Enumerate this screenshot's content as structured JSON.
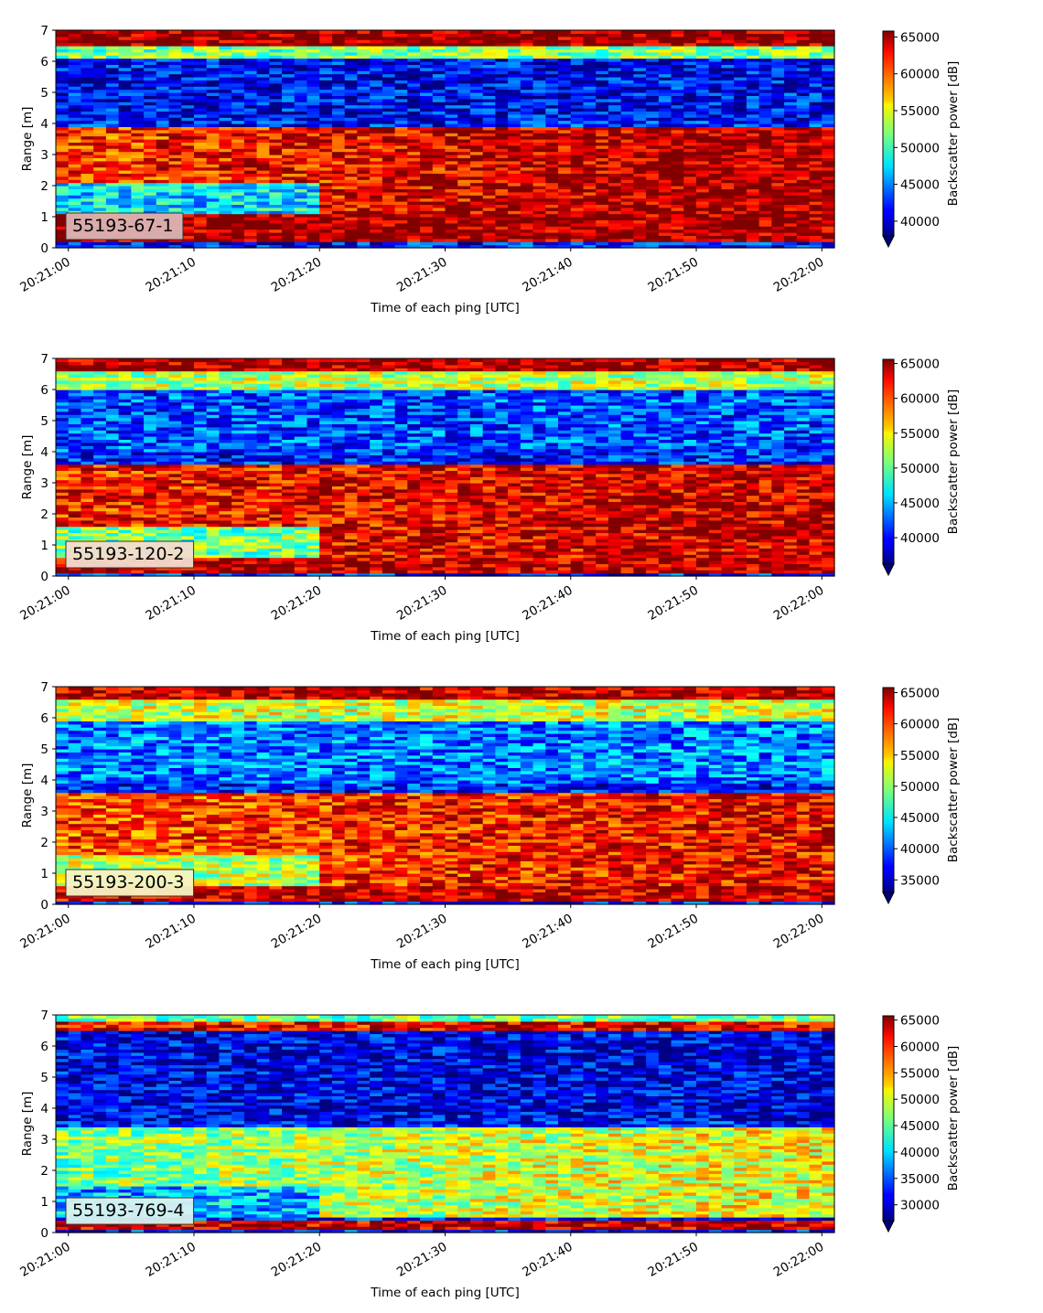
{
  "chart_data": [
    {
      "type": "heatmap",
      "label": "55193-67-1",
      "label_bg": "#dcb4b4",
      "xlabel": "Time of each ping [UTC]",
      "ylabel": "Range [m]",
      "xticks": [
        "20:21:00",
        "20:21:10",
        "20:21:20",
        "20:21:30",
        "20:21:40",
        "20:21:50",
        "20:22:00"
      ],
      "yticks": [
        "0",
        "1",
        "2",
        "3",
        "4",
        "5",
        "6",
        "7"
      ],
      "xlim_seconds": [
        -1,
        61
      ],
      "ylim": [
        0,
        7
      ],
      "colorbar": {
        "label": "Backscatter power [dB]",
        "ticks": [
          "40000",
          "45000",
          "50000",
          "55000",
          "60000",
          "65000"
        ],
        "range": [
          38000,
          65800
        ],
        "extend": "min"
      },
      "layers": [
        {
          "name": "surface",
          "from": 6.5,
          "to": 7.0,
          "t0": [
            0.98,
            0.98
          ],
          "t1": [
            0.98,
            0.98
          ]
        },
        {
          "name": "upper transition",
          "from": 6.15,
          "to": 6.5,
          "t0": [
            0.5,
            0.5
          ],
          "t1": [
            0.5,
            0.5
          ]
        },
        {
          "name": "water column",
          "from": 4.1,
          "to": 6.15,
          "t0": [
            0.12,
            0.12
          ],
          "t1": [
            0.12,
            0.12
          ]
        },
        {
          "name": "scattering layer",
          "from": 1.1,
          "to": 3.9,
          "t0": [
            0.82,
            0.35
          ],
          "t1": [
            0.97,
            0.97
          ]
        },
        {
          "name": "seabed",
          "from": 0.2,
          "to": 1.1,
          "t0": [
            0.97,
            0.97
          ],
          "t1": [
            0.97,
            0.97
          ]
        }
      ]
    },
    {
      "type": "heatmap",
      "label": "55193-120-2",
      "label_bg": "#f2dccf",
      "xlabel": "Time of each ping [UTC]",
      "ylabel": "Range [m]",
      "xticks": [
        "20:21:00",
        "20:21:10",
        "20:21:20",
        "20:21:30",
        "20:21:40",
        "20:21:50",
        "20:22:00"
      ],
      "yticks": [
        "0",
        "1",
        "2",
        "3",
        "4",
        "5",
        "6",
        "7"
      ],
      "xlim_seconds": [
        -1,
        61
      ],
      "ylim": [
        0,
        7
      ],
      "colorbar": {
        "label": "Backscatter power [dB]",
        "ticks": [
          "40000",
          "45000",
          "50000",
          "55000",
          "60000",
          "65000"
        ],
        "range": [
          36200,
          65600
        ],
        "extend": "min"
      },
      "layers": [
        {
          "name": "surface",
          "from": 6.6,
          "to": 7.0,
          "t0": [
            0.96,
            0.96
          ],
          "t1": [
            0.96,
            0.96
          ]
        },
        {
          "name": "upper transition",
          "from": 6.0,
          "to": 6.6,
          "t0": [
            0.55,
            0.55
          ],
          "t1": [
            0.55,
            0.55
          ]
        },
        {
          "name": "water column",
          "from": 4.0,
          "to": 6.0,
          "t0": [
            0.2,
            0.2
          ],
          "t1": [
            0.2,
            0.2
          ]
        },
        {
          "name": "scattering layer",
          "from": 0.6,
          "to": 3.6,
          "t0": [
            0.85,
            0.5
          ],
          "t1": [
            0.93,
            0.93
          ]
        },
        {
          "name": "seabed",
          "from": 0.1,
          "to": 0.6,
          "t0": [
            0.95,
            0.95
          ],
          "t1": [
            0.95,
            0.95
          ]
        }
      ]
    },
    {
      "type": "heatmap",
      "label": "55193-200-3",
      "label_bg": "#f6f3c4",
      "xlabel": "Time of each ping [UTC]",
      "ylabel": "Range [m]",
      "xticks": [
        "20:21:00",
        "20:21:10",
        "20:21:20",
        "20:21:30",
        "20:21:40",
        "20:21:50",
        "20:22:00"
      ],
      "yticks": [
        "0",
        "1",
        "2",
        "3",
        "4",
        "5",
        "6",
        "7"
      ],
      "xlim_seconds": [
        -1,
        61
      ],
      "ylim": [
        0,
        7
      ],
      "colorbar": {
        "label": "Backscatter power [dB]",
        "ticks": [
          "35000",
          "40000",
          "45000",
          "50000",
          "55000",
          "60000",
          "65000"
        ],
        "range": [
          33000,
          65800
        ],
        "extend": "min"
      },
      "layers": [
        {
          "name": "surface",
          "from": 6.6,
          "to": 7.0,
          "t0": [
            0.94,
            0.94
          ],
          "t1": [
            0.94,
            0.94
          ]
        },
        {
          "name": "upper transition",
          "from": 5.9,
          "to": 6.6,
          "t0": [
            0.58,
            0.58
          ],
          "t1": [
            0.58,
            0.58
          ]
        },
        {
          "name": "water column",
          "from": 3.9,
          "to": 5.9,
          "t0": [
            0.25,
            0.25
          ],
          "t1": [
            0.25,
            0.25
          ]
        },
        {
          "name": "scattering layer",
          "from": 0.6,
          "to": 3.6,
          "t0": [
            0.8,
            0.55
          ],
          "t1": [
            0.88,
            0.88
          ]
        },
        {
          "name": "seabed",
          "from": 0.1,
          "to": 0.6,
          "t0": [
            0.93,
            0.93
          ],
          "t1": [
            0.93,
            0.93
          ]
        }
      ]
    },
    {
      "type": "heatmap",
      "label": "55193-769-4",
      "label_bg": "#d8f2f0",
      "xlabel": "Time of each ping [UTC]",
      "ylabel": "Range [m]",
      "xticks": [
        "20:21:00",
        "20:21:10",
        "20:21:20",
        "20:21:30",
        "20:21:40",
        "20:21:50",
        "20:22:00"
      ],
      "yticks": [
        "0",
        "1",
        "2",
        "3",
        "4",
        "5",
        "6",
        "7"
      ],
      "xlim_seconds": [
        -1,
        61
      ],
      "ylim": [
        0,
        7
      ],
      "colorbar": {
        "label": "Backscatter power [dB]",
        "ticks": [
          "30000",
          "35000",
          "40000",
          "45000",
          "50000",
          "55000",
          "60000",
          "65000"
        ],
        "range": [
          27000,
          65800
        ],
        "extend": "min"
      },
      "layers": [
        {
          "name": "surface",
          "from": 6.8,
          "to": 7.0,
          "t0": [
            0.5,
            0.5
          ],
          "t1": [
            0.5,
            0.5
          ]
        },
        {
          "name": "surface echo",
          "from": 6.45,
          "to": 6.8,
          "t0": [
            0.88,
            0.88
          ],
          "t1": [
            0.88,
            0.88
          ]
        },
        {
          "name": "water column",
          "from": 3.6,
          "to": 6.45,
          "t0": [
            0.1,
            0.1
          ],
          "t1": [
            0.1,
            0.1
          ]
        },
        {
          "name": "scattering layer",
          "from": 0.5,
          "to": 3.4,
          "t0": [
            0.5,
            0.3
          ],
          "t1": [
            0.62,
            0.62
          ]
        },
        {
          "name": "seabed",
          "from": 0.15,
          "to": 0.4,
          "t0": [
            0.93,
            0.93
          ],
          "t1": [
            0.93,
            0.93
          ]
        }
      ]
    }
  ]
}
